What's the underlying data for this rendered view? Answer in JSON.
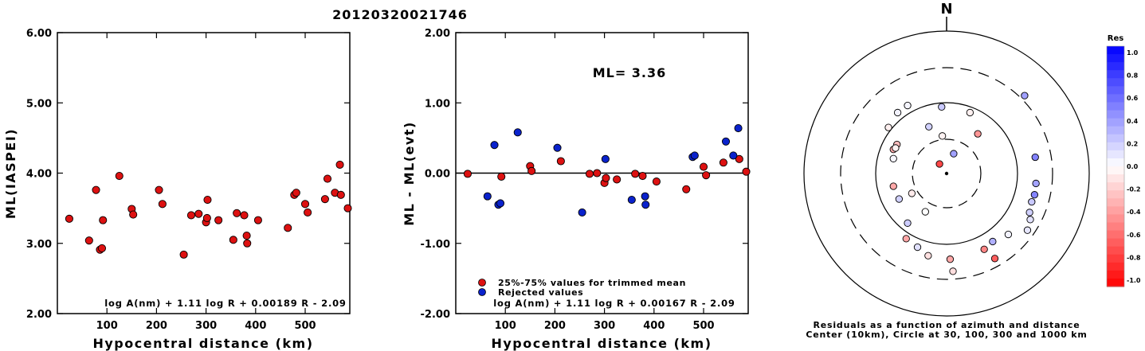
{
  "title": "20120320021746",
  "chart_data": [
    {
      "type": "scatter",
      "ylabel": "ML(IASPEI)",
      "xlabel": "Hypocentral distance (km)",
      "xlim": [
        0,
        590
      ],
      "ylim": [
        2.0,
        6.0
      ],
      "xticks": [
        100,
        200,
        300,
        400,
        500
      ],
      "yticks": [
        "2.00",
        "3.00",
        "4.00",
        "5.00",
        "6.00"
      ],
      "formula": "log A(nm) + 1.11 log R + 0.00189 R - 2.09",
      "color": "#dd1111",
      "points": [
        [
          24,
          3.35
        ],
        [
          64,
          3.04
        ],
        [
          78,
          3.76
        ],
        [
          86,
          2.91
        ],
        [
          90,
          2.93
        ],
        [
          92,
          3.33
        ],
        [
          125,
          3.96
        ],
        [
          150,
          3.49
        ],
        [
          153,
          3.41
        ],
        [
          205,
          3.76
        ],
        [
          212,
          3.56
        ],
        [
          255,
          2.84
        ],
        [
          270,
          3.4
        ],
        [
          285,
          3.42
        ],
        [
          300,
          3.3
        ],
        [
          302,
          3.36
        ],
        [
          303,
          3.62
        ],
        [
          325,
          3.33
        ],
        [
          355,
          3.05
        ],
        [
          362,
          3.43
        ],
        [
          377,
          3.4
        ],
        [
          382,
          3.11
        ],
        [
          383,
          3.0
        ],
        [
          405,
          3.33
        ],
        [
          465,
          3.22
        ],
        [
          478,
          3.69
        ],
        [
          482,
          3.72
        ],
        [
          500,
          3.56
        ],
        [
          505,
          3.44
        ],
        [
          540,
          3.63
        ],
        [
          545,
          3.92
        ],
        [
          560,
          3.72
        ],
        [
          570,
          4.12
        ],
        [
          572,
          3.69
        ],
        [
          586,
          3.5
        ]
      ]
    },
    {
      "type": "scatter",
      "ylabel": "ML - ML(evt)",
      "xlabel": "Hypocentral distance (km)",
      "xlim": [
        0,
        590
      ],
      "ylim": [
        -2.0,
        2.0
      ],
      "xticks": [
        100,
        200,
        300,
        400,
        500
      ],
      "yticks": [
        "-2.00",
        "-1.00",
        "0.00",
        "1.00",
        "2.00"
      ],
      "annotation": "ML= 3.36",
      "legend": [
        "25%-75% values for trimmed mean",
        "Rejected values"
      ],
      "formula": "log A(nm) + 1.11 log R + 0.00167 R - 2.09",
      "colors": {
        "used": "#dd1111",
        "rejected": "#0a22cc"
      },
      "used": [
        [
          24,
          -0.01
        ],
        [
          92,
          -0.05
        ],
        [
          150,
          0.1
        ],
        [
          153,
          0.03
        ],
        [
          212,
          0.17
        ],
        [
          270,
          -0.01
        ],
        [
          285,
          0.0
        ],
        [
          300,
          -0.14
        ],
        [
          303,
          -0.07
        ],
        [
          325,
          -0.09
        ],
        [
          362,
          -0.01
        ],
        [
          377,
          -0.04
        ],
        [
          405,
          -0.12
        ],
        [
          465,
          -0.23
        ],
        [
          500,
          0.09
        ],
        [
          505,
          -0.03
        ],
        [
          540,
          0.15
        ],
        [
          572,
          0.2
        ],
        [
          586,
          0.02
        ]
      ],
      "rejected": [
        [
          64,
          -0.33
        ],
        [
          78,
          0.4
        ],
        [
          86,
          -0.45
        ],
        [
          90,
          -0.43
        ],
        [
          125,
          0.58
        ],
        [
          205,
          0.36
        ],
        [
          255,
          -0.56
        ],
        [
          302,
          0.2
        ],
        [
          355,
          -0.38
        ],
        [
          382,
          -0.33
        ],
        [
          383,
          -0.45
        ],
        [
          478,
          0.23
        ],
        [
          482,
          0.25
        ],
        [
          545,
          0.45
        ],
        [
          560,
          0.25
        ],
        [
          570,
          0.64
        ]
      ]
    },
    {
      "type": "polar-scatter",
      "north_label": "N",
      "caption_line1": "Residuals as a function of azimuth and distance",
      "caption_line2": "Center (10km), Circle at 30, 100, 300 and 1000 km",
      "ring_styles": [
        "dashed",
        "solid",
        "dashed",
        "solid"
      ],
      "points": [
        [
          -0.1,
          0.135,
          -0.72
        ],
        [
          0.1,
          0.28,
          0.37
        ],
        [
          -0.06,
          0.53,
          -0.05
        ],
        [
          -0.25,
          0.66,
          0.18
        ],
        [
          -0.7,
          0.41,
          -0.26
        ],
        [
          -0.75,
          0.21,
          0.03
        ],
        [
          -0.75,
          0.34,
          -0.33
        ],
        [
          -0.82,
          0.65,
          -0.06
        ],
        [
          -0.69,
          0.86,
          0.05
        ],
        [
          -0.72,
          0.36,
          -0.05
        ],
        [
          -0.75,
          -0.18,
          -0.34
        ],
        [
          -0.67,
          -0.36,
          0.18
        ],
        [
          -0.49,
          -0.28,
          -0.08
        ],
        [
          -0.57,
          -0.92,
          -0.35
        ],
        [
          -0.41,
          -1.04,
          0.12
        ],
        [
          -0.26,
          -1.16,
          -0.12
        ],
        [
          -0.3,
          -0.54,
          0.0
        ],
        [
          -0.55,
          0.96,
          0.04
        ],
        [
          -0.07,
          0.94,
          0.21
        ],
        [
          0.44,
          0.56,
          -0.41
        ],
        [
          0.33,
          0.86,
          -0.06
        ],
        [
          0.65,
          -0.96,
          0.31
        ],
        [
          0.87,
          -0.86,
          0.05
        ],
        [
          0.53,
          -1.07,
          -0.48
        ],
        [
          0.68,
          -1.2,
          -0.63
        ],
        [
          0.05,
          -1.21,
          -0.34
        ],
        [
          0.09,
          -1.38,
          -0.13
        ],
        [
          1.25,
          0.23,
          0.49
        ],
        [
          1.26,
          -0.14,
          0.36
        ],
        [
          1.24,
          -0.3,
          0.48
        ],
        [
          1.2,
          -0.4,
          0.21
        ],
        [
          1.14,
          -0.8,
          0.1
        ],
        [
          1.17,
          -0.55,
          0.18
        ],
        [
          1.18,
          -0.65,
          0.11
        ],
        [
          1.1,
          1.1,
          0.37
        ],
        [
          -0.55,
          -0.7,
          0.2
        ]
      ]
    }
  ],
  "colorbar": {
    "title": "Res",
    "labels": [
      "1.0",
      "0.8",
      "0.6",
      "0.4",
      "0.2",
      "0.0",
      "-0.2",
      "-0.4",
      "-0.6",
      "-0.8",
      "-1.0"
    ]
  }
}
